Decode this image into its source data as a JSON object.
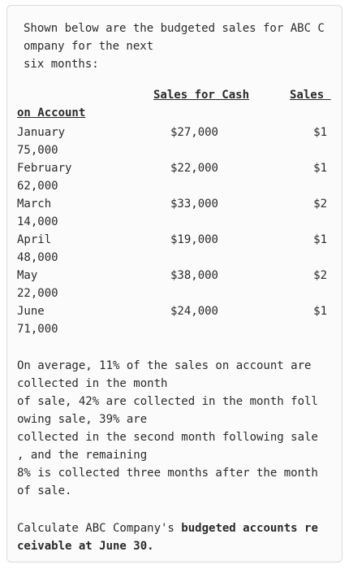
{
  "intro": {
    "line1": "Shown below are the budgeted sales for ABC C",
    "line2": "ompany for the next",
    "line3": "six months:"
  },
  "table": {
    "header_cash": "Sales for Cash",
    "header_sales": "Sales ",
    "header_on_account": "on Account",
    "rows": [
      {
        "month": "January",
        "cash": "$27,000",
        "acct_head": "$1",
        "acct_tail": "75,000"
      },
      {
        "month": "February",
        "cash": "$22,000",
        "acct_head": "$1",
        "acct_tail": "62,000"
      },
      {
        "month": "March",
        "cash": "$33,000",
        "acct_head": "$2",
        "acct_tail": "14,000"
      },
      {
        "month": "April",
        "cash": "$19,000",
        "acct_head": "$1",
        "acct_tail": "48,000"
      },
      {
        "month": "May",
        "cash": "$38,000",
        "acct_head": "$2",
        "acct_tail": "22,000"
      },
      {
        "month": "June",
        "cash": "$24,000",
        "acct_head": "$1",
        "acct_tail": "71,000"
      }
    ]
  },
  "collection": {
    "line1": "On average, 11% of the sales on account are",
    "line2": "collected in the month",
    "line3": "of sale, 42% are collected in the month foll",
    "line4": "owing sale, 39% are",
    "line5": "collected in the second month following sale",
    "line6": ", and the remaining",
    "line7": "8% is collected three months after the month",
    "line8": "of sale."
  },
  "question": {
    "prefix": "Calculate ABC Company's ",
    "bold1": "budgeted accounts re",
    "bold2": "ceivable at June 30",
    "suffix": "."
  }
}
